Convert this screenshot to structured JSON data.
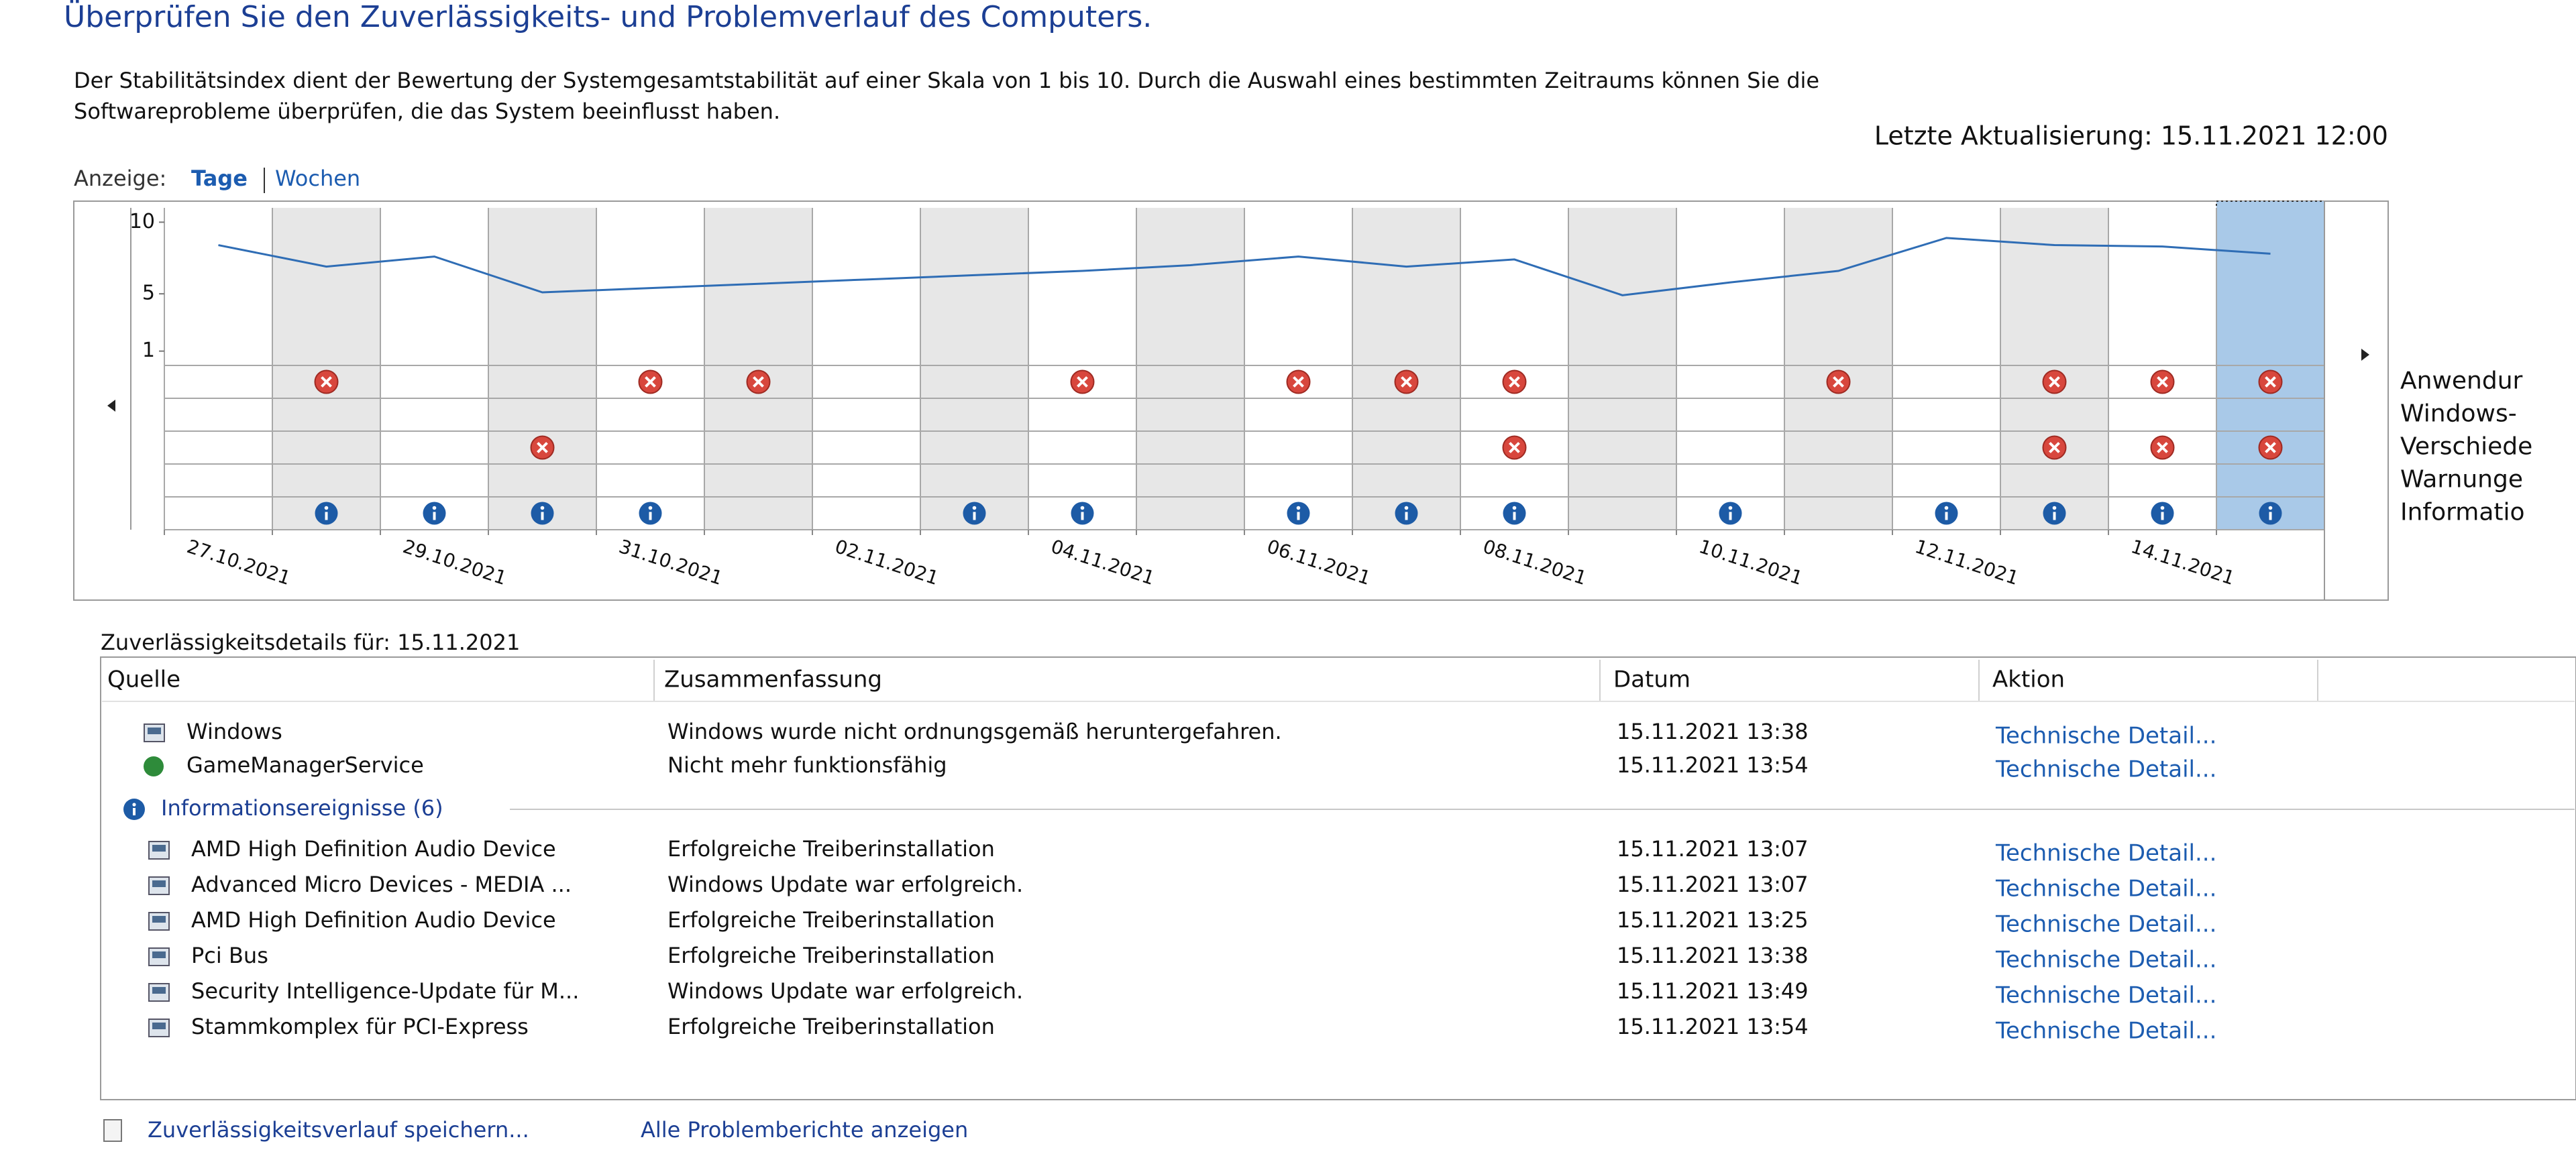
{
  "header": {
    "title": "Überprüfen Sie den Zuverlässigkeits- und Problemverlauf des Computers.",
    "description": [
      "Der Stabilitätsindex dient der Bewertung der Systemgesamtstabilität auf einer Skala von 1 bis 10. Durch die Auswahl eines bestimmten Zeitraums können Sie die",
      "Softwareprobleme überprüfen, die das System beeinflusst haben."
    ],
    "last_update": "Letzte Aktualisierung: 15.11.2021 12:00"
  },
  "view": {
    "label": "Anzeige:",
    "options": [
      "Tage",
      "Wochen"
    ]
  },
  "chart_data": {
    "type": "line",
    "categories": [
      "27.10.2021",
      null,
      "29.10.2021",
      null,
      "31.10.2021",
      null,
      "02.11.2021",
      null,
      "04.11.2021",
      null,
      "06.11.2021",
      null,
      "08.11.2021",
      null,
      "10.11.2021",
      null,
      "12.11.2021",
      null,
      "14.11.2021",
      null
    ],
    "values": [
      8.4,
      6.9,
      7.6,
      5.1,
      5.4,
      5.7,
      6.0,
      6.3,
      6.6,
      7.0,
      7.6,
      6.9,
      7.4,
      4.9,
      5.8,
      6.6,
      8.9,
      8.4,
      8.3,
      7.8
    ],
    "color": "#2f6db5",
    "ylim": [
      0,
      11
    ],
    "yticks": [
      10,
      5,
      1
    ],
    "events": [
      {
        "name": "Anwendur",
        "kind": "error",
        "values": [
          0,
          1,
          0,
          0,
          1,
          1,
          0,
          0,
          1,
          0,
          1,
          1,
          1,
          0,
          0,
          1,
          0,
          1,
          1,
          1
        ]
      },
      {
        "name": "Windows-",
        "kind": "error",
        "values": [
          0,
          0,
          0,
          0,
          0,
          0,
          0,
          0,
          0,
          0,
          0,
          0,
          0,
          0,
          0,
          0,
          0,
          0,
          0,
          0
        ]
      },
      {
        "name": "Verschiede",
        "kind": "error",
        "values": [
          0,
          0,
          0,
          1,
          0,
          0,
          0,
          0,
          0,
          0,
          0,
          0,
          1,
          0,
          0,
          0,
          0,
          1,
          1,
          1
        ]
      },
      {
        "name": "Warnunge",
        "kind": "warning",
        "values": [
          0,
          0,
          0,
          0,
          0,
          0,
          0,
          0,
          0,
          0,
          0,
          0,
          0,
          0,
          0,
          0,
          0,
          0,
          0,
          0
        ]
      },
      {
        "name": "Informatio",
        "kind": "info",
        "values": [
          0,
          1,
          1,
          1,
          1,
          0,
          0,
          1,
          1,
          0,
          1,
          1,
          1,
          0,
          1,
          0,
          1,
          1,
          1,
          1
        ]
      }
    ]
  },
  "details": {
    "title": "Zuverlässigkeitsdetails für: 15.11.2021",
    "columns": [
      "Quelle",
      "Zusammenfassung",
      "Datum",
      "Aktion"
    ],
    "rows": [
      [
        "Windows",
        "Windows wurde nicht ordnungsgemäß heruntergefahren.",
        "15.11.2021 13:38",
        "Technische Detail..."
      ],
      [
        "GameManagerService",
        "Nicht mehr funktionsfähig",
        "15.11.2021 13:54",
        "Technische Detail..."
      ]
    ],
    "group": {
      "label": "Informationsereignisse (6)",
      "rows": [
        [
          "AMD High Definition Audio Device",
          "Erfolgreiche Treiberinstallation",
          "15.11.2021 13:07",
          "Technische Detail..."
        ],
        [
          "Advanced Micro Devices - MEDIA ...",
          "Windows Update war erfolgreich.",
          "15.11.2021 13:07",
          "Technische Detail..."
        ],
        [
          "AMD High Definition Audio Device",
          "Erfolgreiche Treiberinstallation",
          "15.11.2021 13:25",
          "Technische Detail..."
        ],
        [
          "Pci Bus",
          "Erfolgreiche Treiberinstallation",
          "15.11.2021 13:38",
          "Technische Detail..."
        ],
        [
          "Security Intelligence-Update für M...",
          "Windows Update war erfolgreich.",
          "15.11.2021 13:49",
          "Technische Detail..."
        ],
        [
          "Stammkomplex für PCI-Express",
          "Erfolgreiche Treiberinstallation",
          "15.11.2021 13:54",
          "Technische Detail..."
        ]
      ]
    }
  },
  "footer": {
    "links": [
      "Zuverlässigkeitsverlauf speichern...",
      "Alle Problemberichte anzeigen"
    ]
  }
}
